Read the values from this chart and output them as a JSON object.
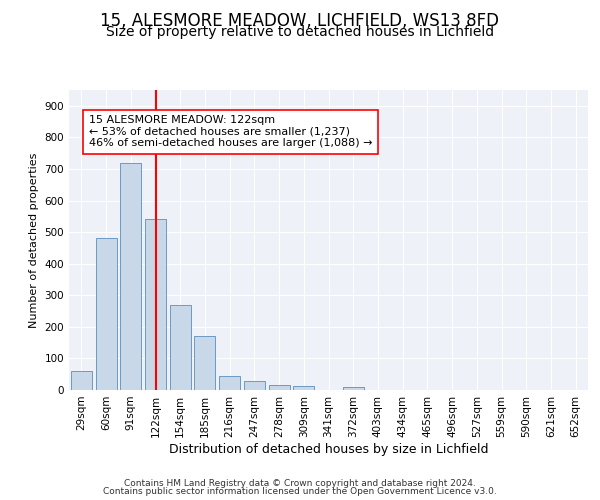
{
  "title1": "15, ALESMORE MEADOW, LICHFIELD, WS13 8FD",
  "title2": "Size of property relative to detached houses in Lichfield",
  "xlabel": "Distribution of detached houses by size in Lichfield",
  "ylabel": "Number of detached properties",
  "categories": [
    "29sqm",
    "60sqm",
    "91sqm",
    "122sqm",
    "154sqm",
    "185sqm",
    "216sqm",
    "247sqm",
    "278sqm",
    "309sqm",
    "341sqm",
    "372sqm",
    "403sqm",
    "434sqm",
    "465sqm",
    "496sqm",
    "527sqm",
    "559sqm",
    "590sqm",
    "621sqm",
    "652sqm"
  ],
  "values": [
    60,
    480,
    720,
    540,
    270,
    170,
    45,
    30,
    15,
    13,
    0,
    9,
    0,
    0,
    0,
    0,
    0,
    0,
    0,
    0,
    0
  ],
  "bar_color": "#c8d8e8",
  "bar_edge_color": "#5a8fc0",
  "vline_x": 3,
  "vline_color": "red",
  "annotation_line1": "15 ALESMORE MEADOW: 122sqm",
  "annotation_line2": "← 53% of detached houses are smaller (1,237)",
  "annotation_line3": "46% of semi-detached houses are larger (1,088) →",
  "annotation_box_color": "white",
  "annotation_box_edge_color": "red",
  "ylim": [
    0,
    950
  ],
  "yticks": [
    0,
    100,
    200,
    300,
    400,
    500,
    600,
    700,
    800,
    900
  ],
  "footer_line1": "Contains HM Land Registry data © Crown copyright and database right 2024.",
  "footer_line2": "Contains public sector information licensed under the Open Government Licence v3.0.",
  "background_color": "#eef2f8",
  "grid_color": "white",
  "title1_fontsize": 12,
  "title2_fontsize": 10,
  "xlabel_fontsize": 9,
  "ylabel_fontsize": 8,
  "tick_fontsize": 7.5,
  "annotation_fontsize": 8,
  "footer_fontsize": 6.5
}
